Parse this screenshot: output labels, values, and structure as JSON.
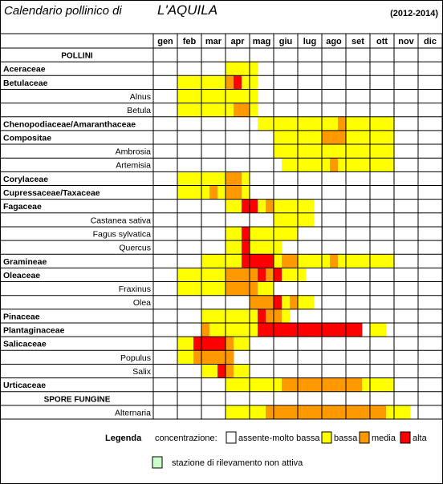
{
  "title": {
    "prefix": "Calendario pollinico di",
    "city": "L'AQUILA",
    "years": "(2012-2014)"
  },
  "months": [
    "gen",
    "feb",
    "mar",
    "apr",
    "mag",
    "giu",
    "lug",
    "ago",
    "set",
    "ott",
    "nov",
    "dic"
  ],
  "section_pollini": "POLLINI",
  "section_spore": "SPORE FUNGINE",
  "legend": {
    "label": "Legenda",
    "concentration_label": "concentrazione:",
    "items": [
      {
        "key": "0",
        "label": "assente-molto bassa",
        "color": "#FFFFFF"
      },
      {
        "key": "1",
        "label": "bassa",
        "color": "#FFFF00"
      },
      {
        "key": "2",
        "label": "media",
        "color": "#FF9900"
      },
      {
        "key": "3",
        "label": "alta",
        "color": "#FF0000"
      }
    ],
    "inactive": {
      "label": "stazione di rilevamento non attiva",
      "color": "#CCFFCC"
    }
  },
  "chart_data": {
    "type": "heatmap",
    "columns": [
      "gen",
      "feb",
      "mar",
      "apr",
      "mag",
      "giu",
      "lug",
      "ago",
      "set",
      "ott",
      "nov",
      "dic"
    ],
    "periods_per_month": 3,
    "scale": {
      "0": "assente-molto bassa",
      "1": "bassa",
      "2": "media",
      "3": "alta"
    },
    "rows": [
      {
        "name": "POLLINI",
        "kind": "section"
      },
      {
        "name": "Aceraceae",
        "kind": "family",
        "levels": "000000000111100000000000000000000000"
      },
      {
        "name": "Betulaceae",
        "kind": "family",
        "levels": "000111111231100000000000000000000000"
      },
      {
        "name": "Alnus",
        "kind": "genus",
        "levels": "000111111111100000000000000000000000"
      },
      {
        "name": "Betula",
        "kind": "genus",
        "levels": "000111111122100000000000000000000000"
      },
      {
        "name": "Chenopodiaceae/Amaranthaceae",
        "kind": "family",
        "levels": "000000000000011111111112111111000000"
      },
      {
        "name": "Compositae",
        "kind": "family",
        "levels": "000000000000000111111222111111000000"
      },
      {
        "name": "Ambrosia",
        "kind": "genus",
        "levels": "000000000000000111111111111111000000"
      },
      {
        "name": "Artemisia",
        "kind": "genus",
        "levels": "000000000000000011111121111111000000"
      },
      {
        "name": "Corylaceae",
        "kind": "family",
        "levels": "000111111221000000000000000000000000"
      },
      {
        "name": "Cupressaceae/Taxaceae",
        "kind": "family",
        "levels": "000111121221000000000000000000000000"
      },
      {
        "name": "Fagaceae",
        "kind": "family",
        "levels": "000000000113312111110000000000000000"
      },
      {
        "name": "Castanea sativa",
        "kind": "genus",
        "levels": "000000000000000111110000000000000000"
      },
      {
        "name": "Fagus sylvatica",
        "kind": "genus",
        "levels": "000000000113111111000000000000000000"
      },
      {
        "name": "Quercus",
        "kind": "genus",
        "levels": "000000000113111100000000000000000000"
      },
      {
        "name": "Gramineae",
        "kind": "family",
        "levels": "000000111113333122111121111111000000"
      },
      {
        "name": "Oleaceae",
        "kind": "family",
        "levels": "000111111222232311100000000000000000"
      },
      {
        "name": "Fraxinus",
        "kind": "genus",
        "levels": "000111111222211000000000000000000000"
      },
      {
        "name": "Olea",
        "kind": "genus",
        "levels": "000000000000222312110000000000000000"
      },
      {
        "name": "Pinaceae",
        "kind": "family",
        "levels": "000000111111132210000000000000000000"
      },
      {
        "name": "Plantaginaceae",
        "kind": "family",
        "levels": "000000211111133333333333330110000000"
      },
      {
        "name": "Salicaceae",
        "kind": "family",
        "levels": "000113333211000000000000000000000000"
      },
      {
        "name": "Populus",
        "kind": "genus",
        "levels": "000112222200000000000000000000000000"
      },
      {
        "name": "Salix",
        "kind": "genus",
        "levels": "000000113211000000000000000000000000"
      },
      {
        "name": "Urticaceae",
        "kind": "family",
        "levels": "000000000111111122222222221111000000"
      },
      {
        "name": "SPORE FUNGINE",
        "kind": "section"
      },
      {
        "name": "Alternaria",
        "kind": "genus",
        "levels": "000000000111112222222222222221110000"
      }
    ]
  }
}
